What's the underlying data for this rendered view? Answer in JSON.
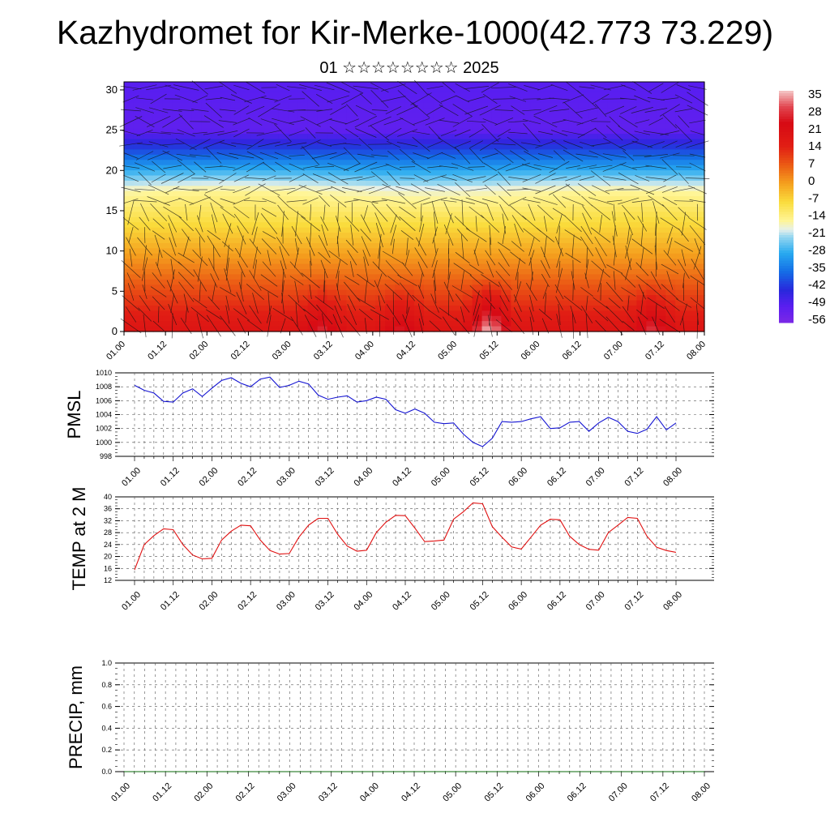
{
  "title": "Kazhydromet for Kir-Merke-1000(42.773 73.229)",
  "subtitle": "01 ☆☆☆☆☆☆☆☆ 2025",
  "colors": {
    "pmsl_line": "#1414d2",
    "temp_line": "#e01010",
    "precip_line": "#0a6a0a"
  },
  "time_ticks": [
    "01.00",
    "01.12",
    "02.00",
    "02.12",
    "03.00",
    "03.12",
    "04.00",
    "04.12",
    "05.00",
    "05.12",
    "06.00",
    "06.12",
    "07.00",
    "07.12",
    "08.00"
  ],
  "chart_data": [
    {
      "type": "heatmap",
      "name": "cross-section",
      "x_ticks": [
        "01.00",
        "01.12",
        "02.00",
        "02.12",
        "03.00",
        "03.12",
        "04.00",
        "04.12",
        "05.00",
        "05.12",
        "06.00",
        "06.12",
        "07.00",
        "07.12",
        "08.00"
      ],
      "ylim": [
        0,
        31
      ],
      "y_ticks": [
        0,
        5,
        10,
        15,
        20,
        25,
        30
      ],
      "colorbar": {
        "labels": [
          "35",
          "28",
          "21",
          "14",
          "7",
          "0",
          "-7",
          "-14",
          "-21",
          "-28",
          "-35",
          "-42",
          "-49",
          "-56"
        ],
        "range": [
          -63,
          42
        ]
      }
    },
    {
      "type": "line",
      "ylabel": "PMSL",
      "ylim": [
        998,
        1010
      ],
      "y_ticks": [
        998,
        1000,
        1002,
        1004,
        1006,
        1008,
        1010
      ],
      "x_ticks": [
        "01.00",
        "01.12",
        "02.00",
        "02.12",
        "03.00",
        "03.12",
        "04.00",
        "04.12",
        "05.00",
        "05.12",
        "06.00",
        "06.12",
        "07.00",
        "07.12",
        "08.00"
      ],
      "values": [
        1008.2,
        1007.5,
        1007.1,
        1005.9,
        1005.8,
        1007.1,
        1007.7,
        1006.6,
        1007.8,
        1008.9,
        1009.3,
        1008.5,
        1008.0,
        1009.1,
        1009.4,
        1007.9,
        1008.2,
        1008.8,
        1008.4,
        1006.8,
        1006.2,
        1006.5,
        1006.7,
        1005.8,
        1006.0,
        1006.5,
        1006.2,
        1004.7,
        1004.2,
        1004.8,
        1004.2,
        1002.9,
        1002.7,
        1002.8,
        1001.2,
        1000.0,
        999.4,
        1000.6,
        1003.0,
        1002.9,
        1003.0,
        1003.4,
        1003.7,
        1002.0,
        1002.1,
        1002.9,
        1003.0,
        1001.6,
        1002.8,
        1003.6,
        1003.0,
        1001.6,
        1001.3,
        1001.9,
        1003.7,
        1001.8,
        1002.8
      ]
    },
    {
      "type": "line",
      "ylabel": "TEMP at 2 M",
      "ylim": [
        12,
        40
      ],
      "y_ticks": [
        12,
        16,
        20,
        24,
        28,
        32,
        36,
        40
      ],
      "x_ticks": [
        "01.00",
        "01.12",
        "02.00",
        "02.12",
        "03.00",
        "03.12",
        "04.00",
        "04.12",
        "05.00",
        "05.12",
        "06.00",
        "06.12",
        "07.00",
        "07.12",
        "08.00"
      ],
      "values": [
        15.5,
        24.0,
        27.0,
        29.3,
        29.0,
        24.0,
        20.5,
        19.2,
        19.4,
        25.5,
        28.5,
        30.5,
        30.3,
        25.5,
        22.0,
        20.8,
        21.0,
        26.5,
        30.5,
        32.8,
        32.8,
        27.5,
        23.5,
        21.8,
        22.1,
        28.0,
        31.5,
        33.8,
        33.7,
        29.5,
        25.0,
        25.2,
        25.5,
        32.5,
        35.0,
        38.0,
        37.7,
        30.0,
        26.5,
        23.2,
        22.5,
        26.5,
        30.5,
        32.5,
        32.3,
        26.8,
        24.0,
        22.4,
        22.1,
        28.0,
        30.5,
        33.1,
        32.8,
        26.8,
        23.1,
        22.0,
        21.4
      ]
    },
    {
      "type": "line",
      "ylabel": "PRECIP, mm",
      "ylim": [
        0,
        1
      ],
      "y_ticks": [
        "0.0",
        "0.2",
        "0.4",
        "0.6",
        "0.8",
        "1.0"
      ],
      "x_ticks": [
        "01.00",
        "01.12",
        "02.00",
        "02.12",
        "03.00",
        "03.12",
        "04.00",
        "04.12",
        "05.00",
        "05.12",
        "06.00",
        "06.12",
        "07.00",
        "07.12",
        "08.00"
      ],
      "values": [
        0,
        0,
        0,
        0,
        0,
        0,
        0,
        0,
        0,
        0,
        0,
        0,
        0,
        0,
        0,
        0,
        0,
        0,
        0,
        0,
        0,
        0,
        0,
        0,
        0,
        0,
        0,
        0,
        0,
        0,
        0,
        0,
        0,
        0,
        0,
        0,
        0,
        0,
        0,
        0,
        0,
        0,
        0,
        0,
        0,
        0,
        0,
        0,
        0,
        0,
        0,
        0,
        0,
        0,
        0,
        0,
        0
      ]
    }
  ]
}
